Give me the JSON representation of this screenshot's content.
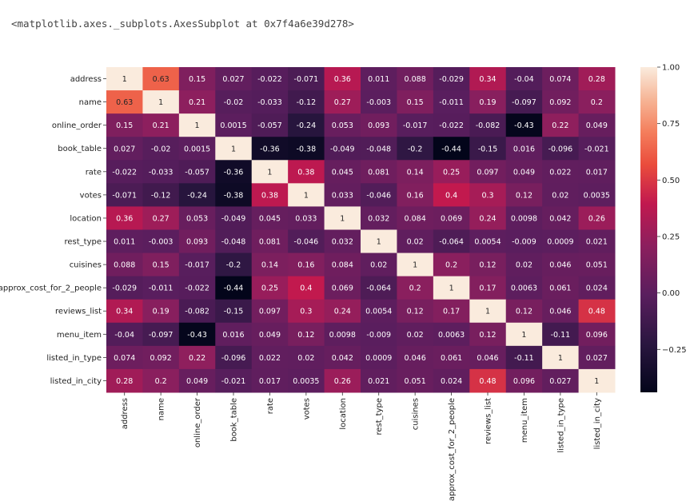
{
  "output_text": "<matplotlib.axes._subplots.AxesSubplot at 0x7f4a6e39d278>",
  "chart_data": {
    "type": "heatmap",
    "labels": [
      "address",
      "name",
      "online_order",
      "book_table",
      "rate",
      "votes",
      "location",
      "rest_type",
      "cuisines",
      "approx_cost_for_2_people",
      "reviews_list",
      "menu_item",
      "listed_in_type",
      "listed_in_city"
    ],
    "matrix": [
      [
        "1",
        "0.63",
        "0.15",
        "0.027",
        "-0.022",
        "-0.071",
        "0.36",
        "0.011",
        "0.088",
        "-0.029",
        "0.34",
        "-0.04",
        "0.074",
        "0.28"
      ],
      [
        "0.63",
        "1",
        "0.21",
        "-0.02",
        "-0.033",
        "-0.12",
        "0.27",
        "-0.003",
        "0.15",
        "-0.011",
        "0.19",
        "-0.097",
        "0.092",
        "0.2"
      ],
      [
        "0.15",
        "0.21",
        "1",
        "0.0015",
        "-0.057",
        "-0.24",
        "0.053",
        "0.093",
        "-0.017",
        "-0.022",
        "-0.082",
        "-0.43",
        "0.22",
        "0.049"
      ],
      [
        "0.027",
        "-0.02",
        "0.0015",
        "1",
        "-0.36",
        "-0.38",
        "-0.049",
        "-0.048",
        "-0.2",
        "-0.44",
        "-0.15",
        "0.016",
        "-0.096",
        "-0.021"
      ],
      [
        "-0.022",
        "-0.033",
        "-0.057",
        "-0.36",
        "1",
        "0.38",
        "0.045",
        "0.081",
        "0.14",
        "0.25",
        "0.097",
        "0.049",
        "0.022",
        "0.017"
      ],
      [
        "-0.071",
        "-0.12",
        "-0.24",
        "-0.38",
        "0.38",
        "1",
        "0.033",
        "-0.046",
        "0.16",
        "0.4",
        "0.3",
        "0.12",
        "0.02",
        "0.0035"
      ],
      [
        "0.36",
        "0.27",
        "0.053",
        "-0.049",
        "0.045",
        "0.033",
        "1",
        "0.032",
        "0.084",
        "0.069",
        "0.24",
        "0.0098",
        "0.042",
        "0.26"
      ],
      [
        "0.011",
        "-0.003",
        "0.093",
        "-0.048",
        "0.081",
        "-0.046",
        "0.032",
        "1",
        "0.02",
        "-0.064",
        "0.0054",
        "-0.009",
        "0.0009",
        "0.021"
      ],
      [
        "0.088",
        "0.15",
        "-0.017",
        "-0.2",
        "0.14",
        "0.16",
        "0.084",
        "0.02",
        "1",
        "0.2",
        "0.12",
        "0.02",
        "0.046",
        "0.051"
      ],
      [
        "-0.029",
        "-0.011",
        "-0.022",
        "-0.44",
        "0.25",
        "0.4",
        "0.069",
        "-0.064",
        "0.2",
        "1",
        "0.17",
        "0.0063",
        "0.061",
        "0.024"
      ],
      [
        "0.34",
        "0.19",
        "-0.082",
        "-0.15",
        "0.097",
        "0.3",
        "0.24",
        "0.0054",
        "0.12",
        "0.17",
        "1",
        "0.12",
        "0.046",
        "0.48"
      ],
      [
        "-0.04",
        "-0.097",
        "-0.43",
        "0.016",
        "0.049",
        "0.12",
        "0.0098",
        "-0.009",
        "0.02",
        "0.0063",
        "0.12",
        "1",
        "-0.11",
        "0.096"
      ],
      [
        "0.074",
        "0.092",
        "0.22",
        "-0.096",
        "0.022",
        "0.02",
        "0.042",
        "0.0009",
        "0.046",
        "0.061",
        "0.046",
        "-0.11",
        "1",
        "0.027"
      ],
      [
        "0.28",
        "0.2",
        "0.049",
        "-0.021",
        "0.017",
        "0.0035",
        "0.26",
        "0.021",
        "0.051",
        "0.024",
        "0.48",
        "0.096",
        "0.027",
        "1"
      ]
    ],
    "colorbar": {
      "min": -0.44,
      "max": 1.0,
      "ticks": [
        "1.00",
        "0.75",
        "0.50",
        "0.25",
        "0.00",
        "−0.25"
      ],
      "tick_values": [
        1.0,
        0.75,
        0.5,
        0.25,
        0.0,
        -0.25
      ],
      "colormap": "rocket"
    },
    "title": "",
    "xlabel": "",
    "ylabel": ""
  }
}
